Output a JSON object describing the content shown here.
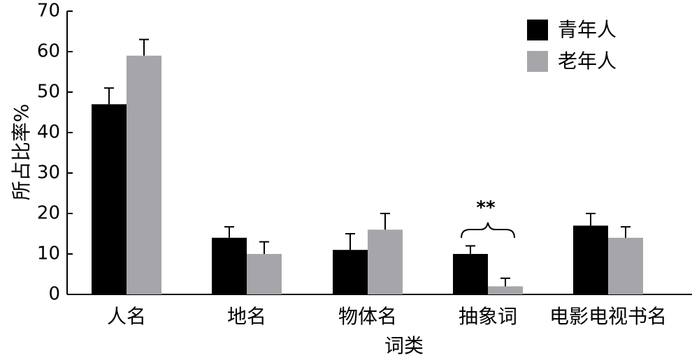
{
  "chart_data": {
    "type": "bar",
    "title": "",
    "xlabel": "词类",
    "ylabel": "所占比率%",
    "ylim": [
      0,
      70
    ],
    "yticks": [
      0,
      10,
      20,
      30,
      40,
      50,
      60,
      70
    ],
    "categories": [
      "人名",
      "地名",
      "物体名",
      "抽象词",
      "电影电视书名"
    ],
    "series": [
      {
        "name": "青年人",
        "color": "#000000",
        "values": [
          47,
          14,
          11,
          10,
          17
        ],
        "errors": [
          4,
          2.7,
          4,
          2,
          3
        ]
      },
      {
        "name": "老年人",
        "color": "#a6a6aa",
        "values": [
          59,
          10,
          16,
          2,
          14
        ],
        "errors": [
          4,
          3,
          4,
          2,
          2.7
        ]
      }
    ],
    "legend_position": "top-right",
    "grid": false,
    "annotations": [
      {
        "text": "**",
        "category_index": 3,
        "type": "brace"
      }
    ]
  }
}
